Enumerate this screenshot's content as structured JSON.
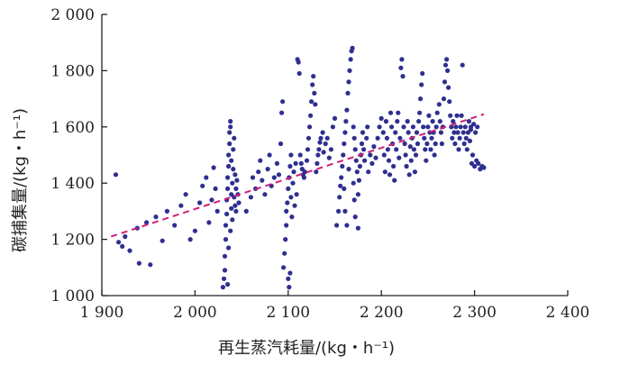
{
  "chart_data": {
    "type": "scatter",
    "xlabel": "再生蒸汽耗量/(kg・h⁻¹)",
    "ylabel": "碳捕集量/(kg・h⁻¹)",
    "xlim": [
      1900,
      2400
    ],
    "ylim": [
      1000,
      2000
    ],
    "x_ticks": [
      "1 900",
      "2 000",
      "2 100",
      "2 200",
      "2 300",
      "2 400"
    ],
    "y_ticks": [
      "1 000",
      "1 200",
      "1 400",
      "1 600",
      "1 800",
      "2 000"
    ],
    "point_color": "#2e2f8f",
    "trend_color": "#d11e78",
    "trendline": {
      "x": [
        1910,
        2310
      ],
      "y": [
        1210,
        1645
      ]
    },
    "points": [
      [
        1915,
        1430
      ],
      [
        1918,
        1190
      ],
      [
        1922,
        1175
      ],
      [
        1925,
        1210
      ],
      [
        1930,
        1160
      ],
      [
        1938,
        1240
      ],
      [
        1940,
        1115
      ],
      [
        1948,
        1260
      ],
      [
        1952,
        1110
      ],
      [
        1958,
        1280
      ],
      [
        1965,
        1195
      ],
      [
        1970,
        1300
      ],
      [
        1978,
        1250
      ],
      [
        1985,
        1320
      ],
      [
        1990,
        1360
      ],
      [
        1995,
        1200
      ],
      [
        2000,
        1230
      ],
      [
        2005,
        1330
      ],
      [
        2008,
        1390
      ],
      [
        2012,
        1420
      ],
      [
        2015,
        1260
      ],
      [
        2018,
        1340
      ],
      [
        2020,
        1455
      ],
      [
        2022,
        1380
      ],
      [
        2024,
        1300
      ],
      [
        2030,
        1030
      ],
      [
        2031,
        1060
      ],
      [
        2032,
        1090
      ],
      [
        2032,
        1140
      ],
      [
        2033,
        1200
      ],
      [
        2033,
        1250
      ],
      [
        2034,
        1290
      ],
      [
        2034,
        1340
      ],
      [
        2035,
        1380
      ],
      [
        2035,
        1420
      ],
      [
        2036,
        1460
      ],
      [
        2036,
        1500
      ],
      [
        2037,
        1540
      ],
      [
        2037,
        1580
      ],
      [
        2038,
        1600
      ],
      [
        2038,
        1620
      ],
      [
        2039,
        1360
      ],
      [
        2039,
        1310
      ],
      [
        2040,
        1400
      ],
      [
        2040,
        1270
      ],
      [
        2041,
        1450
      ],
      [
        2042,
        1350
      ],
      [
        2043,
        1320
      ],
      [
        2044,
        1380
      ],
      [
        2045,
        1410
      ],
      [
        2035,
        1040
      ],
      [
        2036,
        1170
      ],
      [
        2038,
        1230
      ],
      [
        2039,
        1480
      ],
      [
        2041,
        1520
      ],
      [
        2042,
        1560
      ],
      [
        2043,
        1430
      ],
      [
        2044,
        1300
      ],
      [
        2046,
        1360
      ],
      [
        2047,
        1330
      ],
      [
        2055,
        1300
      ],
      [
        2060,
        1350
      ],
      [
        2062,
        1420
      ],
      [
        2065,
        1380
      ],
      [
        2068,
        1440
      ],
      [
        2070,
        1480
      ],
      [
        2072,
        1410
      ],
      [
        2075,
        1360
      ],
      [
        2078,
        1450
      ],
      [
        2080,
        1500
      ],
      [
        2082,
        1390
      ],
      [
        2085,
        1420
      ],
      [
        2088,
        1470
      ],
      [
        2090,
        1430
      ],
      [
        2092,
        1540
      ],
      [
        2093,
        1650
      ],
      [
        2094,
        1690
      ],
      [
        2095,
        1100
      ],
      [
        2096,
        1150
      ],
      [
        2097,
        1200
      ],
      [
        2098,
        1250
      ],
      [
        2098,
        1300
      ],
      [
        2099,
        1330
      ],
      [
        2100,
        1060
      ],
      [
        2100,
        1380
      ],
      [
        2101,
        1420
      ],
      [
        2101,
        1030
      ],
      [
        2102,
        1460
      ],
      [
        2102,
        1080
      ],
      [
        2103,
        1500
      ],
      [
        2103,
        1350
      ],
      [
        2104,
        1280
      ],
      [
        2105,
        1400
      ],
      [
        2106,
        1440
      ],
      [
        2107,
        1320
      ],
      [
        2108,
        1470
      ],
      [
        2109,
        1360
      ],
      [
        2110,
        1840
      ],
      [
        2111,
        1830
      ],
      [
        2112,
        1790
      ],
      [
        2113,
        1500
      ],
      [
        2114,
        1470
      ],
      [
        2115,
        1450
      ],
      [
        2116,
        1430
      ],
      [
        2117,
        1420
      ],
      [
        2118,
        1440
      ],
      [
        2120,
        1480
      ],
      [
        2121,
        1520
      ],
      [
        2122,
        1560
      ],
      [
        2123,
        1600
      ],
      [
        2124,
        1640
      ],
      [
        2125,
        1690
      ],
      [
        2126,
        1750
      ],
      [
        2127,
        1780
      ],
      [
        2128,
        1720
      ],
      [
        2129,
        1680
      ],
      [
        2130,
        1440
      ],
      [
        2131,
        1470
      ],
      [
        2132,
        1500
      ],
      [
        2133,
        1520
      ],
      [
        2134,
        1545
      ],
      [
        2135,
        1560
      ],
      [
        2137,
        1580
      ],
      [
        2138,
        1510
      ],
      [
        2140,
        1540
      ],
      [
        2142,
        1560
      ],
      [
        2144,
        1490
      ],
      [
        2146,
        1520
      ],
      [
        2148,
        1600
      ],
      [
        2150,
        1630
      ],
      [
        2152,
        1250
      ],
      [
        2154,
        1300
      ],
      [
        2155,
        1350
      ],
      [
        2156,
        1390
      ],
      [
        2157,
        1420
      ],
      [
        2158,
        1460
      ],
      [
        2159,
        1500
      ],
      [
        2160,
        1540
      ],
      [
        2160,
        1380
      ],
      [
        2161,
        1580
      ],
      [
        2161,
        1300
      ],
      [
        2162,
        1620
      ],
      [
        2163,
        1660
      ],
      [
        2163,
        1250
      ],
      [
        2164,
        1720
      ],
      [
        2165,
        1760
      ],
      [
        2165,
        1450
      ],
      [
        2166,
        1800
      ],
      [
        2167,
        1840
      ],
      [
        2168,
        1870
      ],
      [
        2169,
        1880
      ],
      [
        2170,
        1600
      ],
      [
        2170,
        1400
      ],
      [
        2171,
        1560
      ],
      [
        2171,
        1340
      ],
      [
        2172,
        1520
      ],
      [
        2172,
        1280
      ],
      [
        2173,
        1480
      ],
      [
        2174,
        1440
      ],
      [
        2175,
        1360
      ],
      [
        2175,
        1240
      ],
      [
        2176,
        1410
      ],
      [
        2177,
        1460
      ],
      [
        2178,
        1500
      ],
      [
        2179,
        1540
      ],
      [
        2180,
        1580
      ],
      [
        2181,
        1520
      ],
      [
        2182,
        1480
      ],
      [
        2184,
        1560
      ],
      [
        2185,
        1600
      ],
      [
        2186,
        1440
      ],
      [
        2188,
        1500
      ],
      [
        2190,
        1470
      ],
      [
        2192,
        1530
      ],
      [
        2194,
        1490
      ],
      [
        2196,
        1560
      ],
      [
        2198,
        1600
      ],
      [
        2200,
        1630
      ],
      [
        2202,
        1580
      ],
      [
        2203,
        1500
      ],
      [
        2204,
        1440
      ],
      [
        2205,
        1620
      ],
      [
        2206,
        1560
      ],
      [
        2207,
        1520
      ],
      [
        2208,
        1480
      ],
      [
        2209,
        1430
      ],
      [
        2210,
        1650
      ],
      [
        2211,
        1600
      ],
      [
        2212,
        1540
      ],
      [
        2213,
        1460
      ],
      [
        2214,
        1410
      ],
      [
        2215,
        1580
      ],
      [
        2216,
        1520
      ],
      [
        2217,
        1620
      ],
      [
        2218,
        1650
      ],
      [
        2219,
        1490
      ],
      [
        2220,
        1560
      ],
      [
        2221,
        1810
      ],
      [
        2222,
        1840
      ],
      [
        2223,
        1780
      ],
      [
        2224,
        1600
      ],
      [
        2225,
        1540
      ],
      [
        2226,
        1500
      ],
      [
        2227,
        1460
      ],
      [
        2228,
        1620
      ],
      [
        2229,
        1580
      ],
      [
        2230,
        1430
      ],
      [
        2231,
        1530
      ],
      [
        2232,
        1480
      ],
      [
        2233,
        1560
      ],
      [
        2234,
        1600
      ],
      [
        2235,
        1520
      ],
      [
        2236,
        1440
      ],
      [
        2237,
        1500
      ],
      [
        2238,
        1580
      ],
      [
        2239,
        1540
      ],
      [
        2240,
        1620
      ],
      [
        2241,
        1650
      ],
      [
        2242,
        1700
      ],
      [
        2243,
        1750
      ],
      [
        2244,
        1790
      ],
      [
        2245,
        1600
      ],
      [
        2246,
        1560
      ],
      [
        2247,
        1520
      ],
      [
        2248,
        1480
      ],
      [
        2249,
        1540
      ],
      [
        2250,
        1600
      ],
      [
        2251,
        1640
      ],
      [
        2252,
        1580
      ],
      [
        2253,
        1520
      ],
      [
        2254,
        1560
      ],
      [
        2255,
        1620
      ],
      [
        2256,
        1580
      ],
      [
        2257,
        1500
      ],
      [
        2258,
        1540
      ],
      [
        2259,
        1600
      ],
      [
        2260,
        1650
      ],
      [
        2262,
        1680
      ],
      [
        2263,
        1620
      ],
      [
        2264,
        1580
      ],
      [
        2265,
        1540
      ],
      [
        2266,
        1600
      ],
      [
        2267,
        1700
      ],
      [
        2268,
        1760
      ],
      [
        2269,
        1820
      ],
      [
        2270,
        1840
      ],
      [
        2271,
        1800
      ],
      [
        2272,
        1740
      ],
      [
        2273,
        1690
      ],
      [
        2274,
        1640
      ],
      [
        2275,
        1600
      ],
      [
        2276,
        1560
      ],
      [
        2277,
        1620
      ],
      [
        2278,
        1580
      ],
      [
        2279,
        1540
      ],
      [
        2280,
        1600
      ],
      [
        2281,
        1640
      ],
      [
        2282,
        1580
      ],
      [
        2283,
        1520
      ],
      [
        2284,
        1560
      ],
      [
        2285,
        1600
      ],
      [
        2286,
        1640
      ],
      [
        2287,
        1820
      ],
      [
        2288,
        1580
      ],
      [
        2289,
        1540
      ],
      [
        2290,
        1600
      ],
      [
        2291,
        1560
      ],
      [
        2292,
        1520
      ],
      [
        2293,
        1580
      ],
      [
        2294,
        1620
      ],
      [
        2295,
        1550
      ],
      [
        2296,
        1600
      ],
      [
        2297,
        1470
      ],
      [
        2298,
        1500
      ],
      [
        2300,
        1460
      ],
      [
        2302,
        1480
      ],
      [
        2304,
        1470
      ],
      [
        2306,
        1450
      ],
      [
        2308,
        1460
      ],
      [
        2310,
        1455
      ],
      [
        2296,
        1590
      ],
      [
        2299,
        1610
      ],
      [
        2301,
        1580
      ],
      [
        2303,
        1600
      ]
    ]
  }
}
